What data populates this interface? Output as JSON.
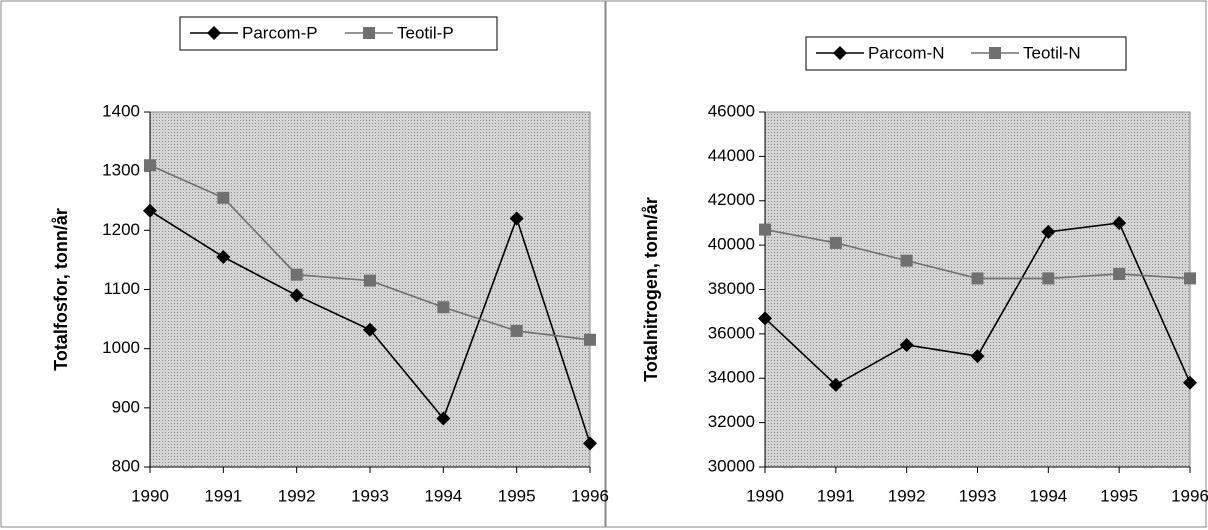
{
  "chart_data": [
    {
      "type": "line",
      "y_label": "Totalfosfor, tonn/år",
      "categories": [
        "1990",
        "1991",
        "1992",
        "1993",
        "1994",
        "1995",
        "1996"
      ],
      "series": [
        {
          "name": "Parcom-P",
          "color": "#000000",
          "marker": "diamond",
          "values": [
            1233,
            1155,
            1090,
            1032,
            882,
            1220,
            840
          ]
        },
        {
          "name": "Teotil-P",
          "color": "#707070",
          "marker": "square",
          "values": [
            1310,
            1255,
            1125,
            1115,
            1070,
            1030,
            1015
          ]
        }
      ],
      "ylim": [
        800,
        1400
      ],
      "yticks": [
        800,
        900,
        1000,
        1100,
        1200,
        1300,
        1400
      ],
      "legend": "top"
    },
    {
      "type": "line",
      "y_label": "Totalnitrogen, tonn/år",
      "categories": [
        "1990",
        "1991",
        "1992",
        "1993",
        "1994",
        "1995",
        "1996"
      ],
      "series": [
        {
          "name": "Parcom-N",
          "color": "#000000",
          "marker": "diamond",
          "values": [
            36700,
            33700,
            35500,
            35000,
            40600,
            41000,
            33800
          ]
        },
        {
          "name": "Teotil-N",
          "color": "#707070",
          "marker": "square",
          "values": [
            40700,
            40100,
            39300,
            38500,
            38500,
            38700,
            38500
          ]
        }
      ],
      "ylim": [
        30000,
        46000
      ],
      "yticks": [
        30000,
        32000,
        34000,
        36000,
        38000,
        40000,
        42000,
        44000,
        46000
      ],
      "legend": "top"
    }
  ]
}
